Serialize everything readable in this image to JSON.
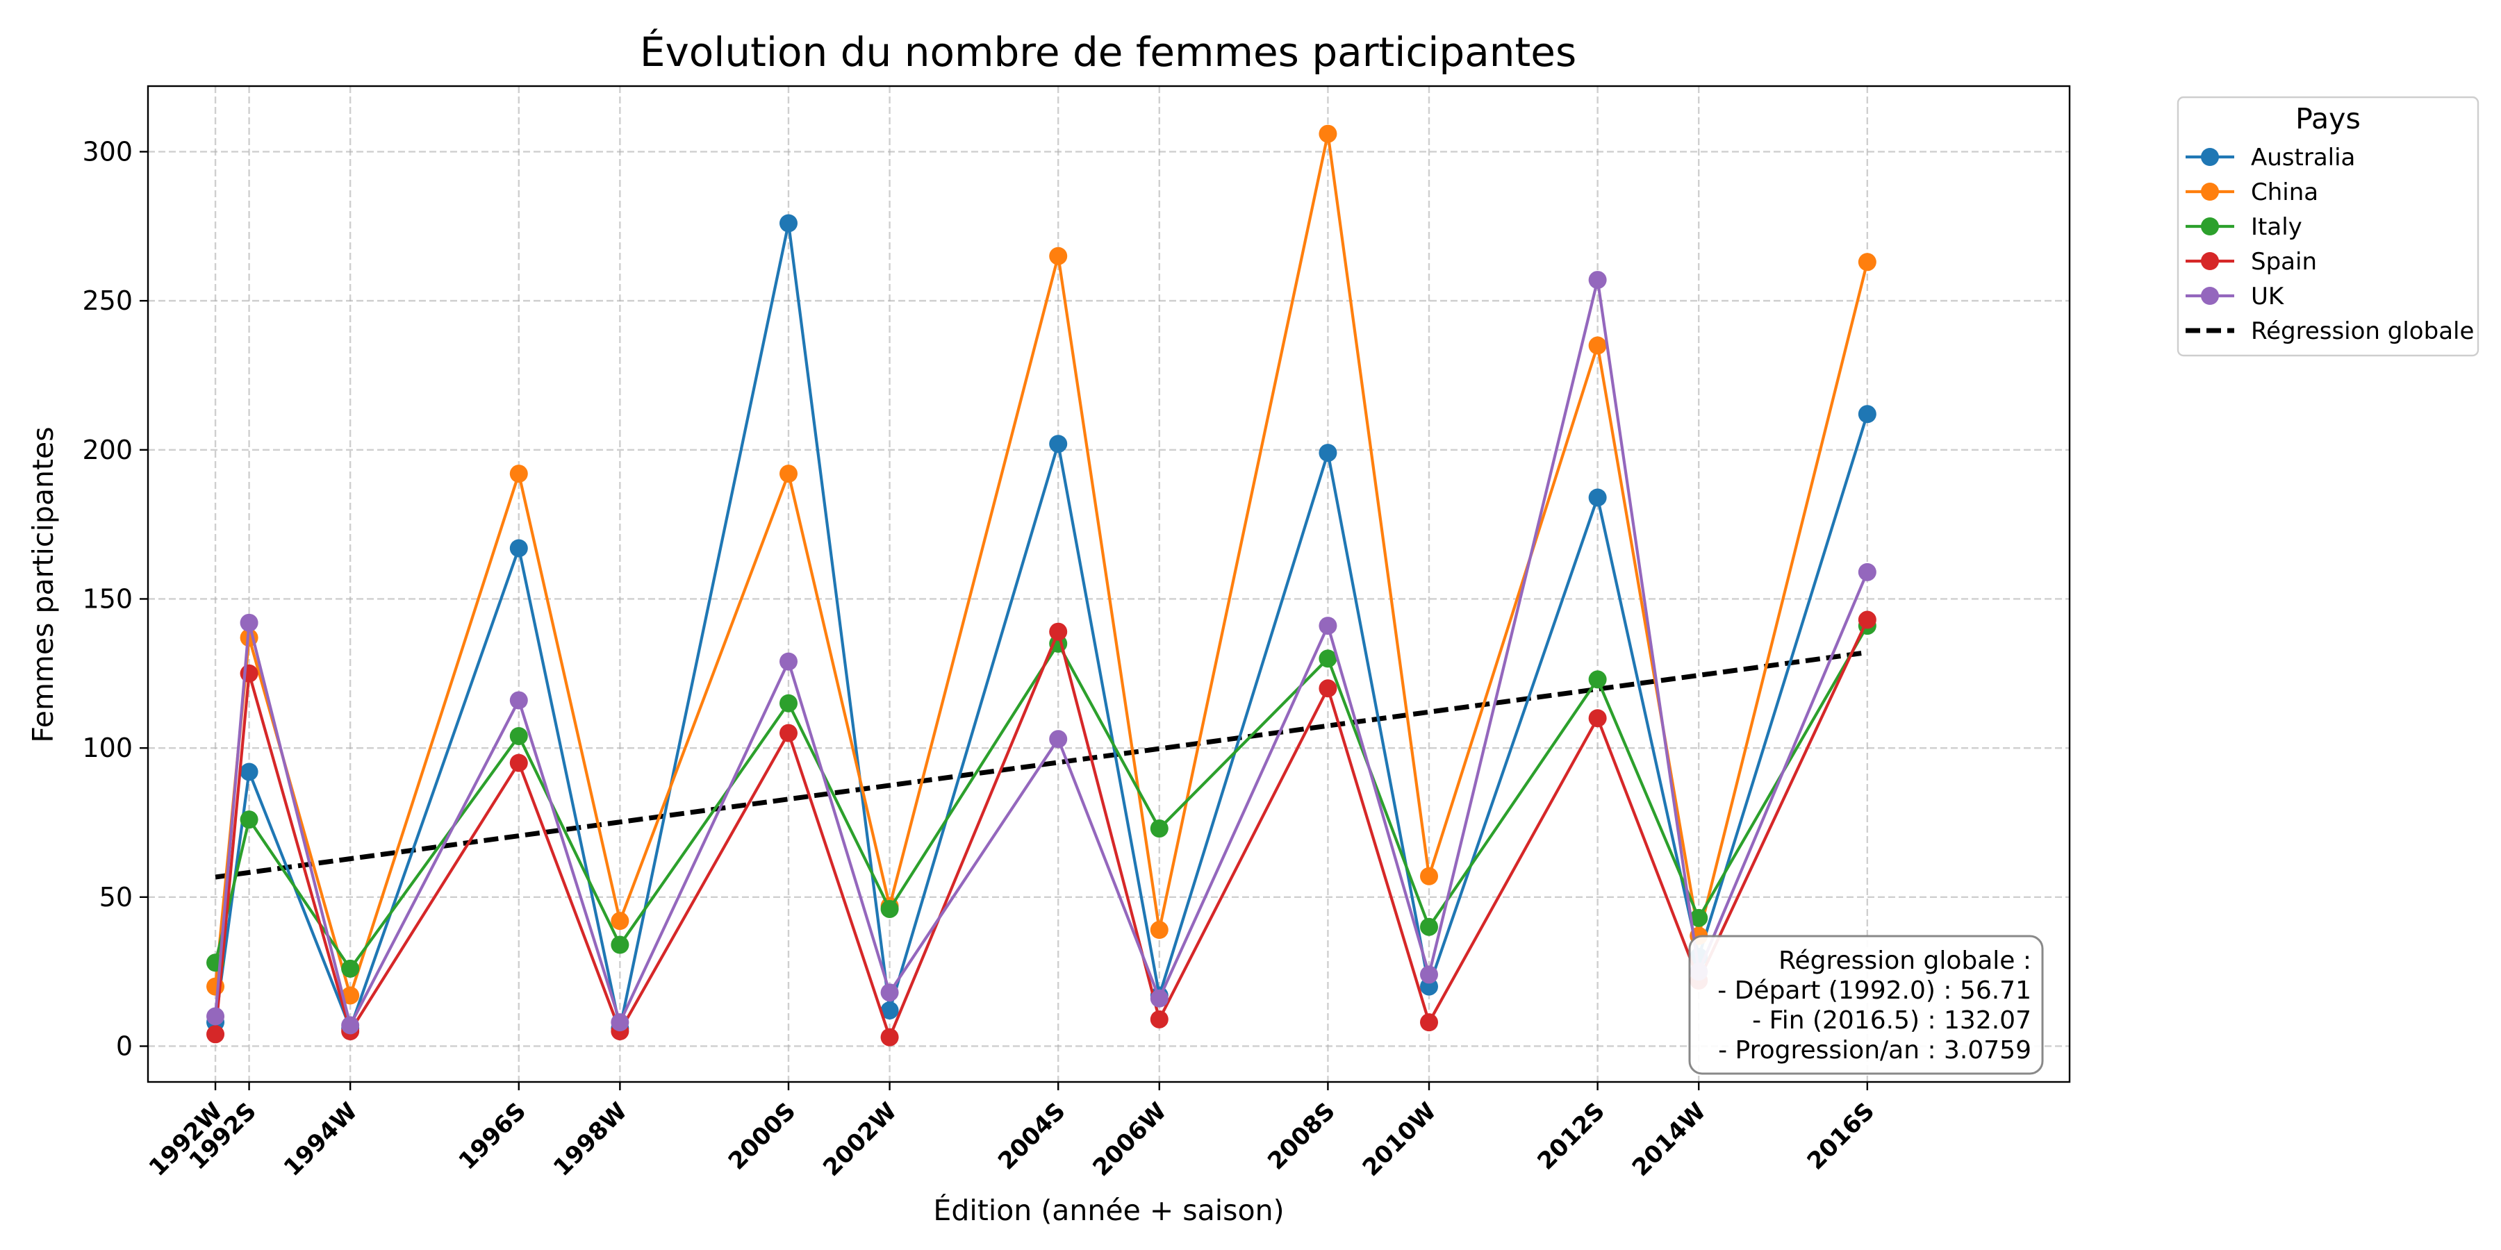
{
  "chart_data": {
    "type": "line",
    "title": "Évolution du nombre de femmes participantes",
    "xlabel": "Édition (année + saison)",
    "ylabel": "Femmes participantes",
    "ylim": [
      -12,
      322
    ],
    "xlim": [
      1991.0,
      2019.5
    ],
    "yticks": [
      0,
      50,
      100,
      150,
      200,
      250,
      300
    ],
    "grid": true,
    "legend_position": "outside-top-right",
    "legend_title": "Pays",
    "categories": [
      "1992W",
      "1992S",
      "1994W",
      "1996S",
      "1998W",
      "2000S",
      "2002W",
      "2004S",
      "2006W",
      "2008S",
      "2010W",
      "2012S",
      "2014W",
      "2016S"
    ],
    "x": [
      1992.0,
      1992.5,
      1994.0,
      1996.5,
      1998.0,
      2000.5,
      2002.0,
      2004.5,
      2006.0,
      2008.5,
      2010.0,
      2012.5,
      2014.0,
      2016.5
    ],
    "series": [
      {
        "name": "Australia",
        "color": "#1f77b4",
        "values": [
          8,
          92,
          6,
          167,
          6,
          276,
          12,
          202,
          17,
          199,
          20,
          184,
          30,
          212
        ]
      },
      {
        "name": "China",
        "color": "#ff7f0e",
        "values": [
          20,
          137,
          17,
          192,
          42,
          192,
          47,
          265,
          39,
          306,
          57,
          235,
          37,
          263
        ]
      },
      {
        "name": "Italy",
        "color": "#2ca02c",
        "values": [
          28,
          76,
          26,
          104,
          34,
          115,
          46,
          135,
          73,
          130,
          40,
          123,
          43,
          141
        ]
      },
      {
        "name": "Spain",
        "color": "#d62728",
        "values": [
          4,
          125,
          5,
          95,
          5,
          105,
          3,
          139,
          9,
          120,
          8,
          110,
          22,
          143
        ]
      },
      {
        "name": "UK",
        "color": "#9467bd",
        "values": [
          10,
          142,
          7,
          116,
          8,
          129,
          18,
          103,
          16,
          141,
          24,
          257,
          25,
          159
        ]
      }
    ],
    "regression": {
      "name": "Régression globale",
      "color": "#000000",
      "x": [
        1992.0,
        2016.5
      ],
      "y": [
        56.71,
        132.07
      ]
    },
    "annotation": {
      "lines": [
        "Régression globale :",
        "- Départ (1992.0) : 56.71",
        "- Fin (2016.5) : 132.07",
        "- Progression/an : 3.0759"
      ]
    }
  }
}
